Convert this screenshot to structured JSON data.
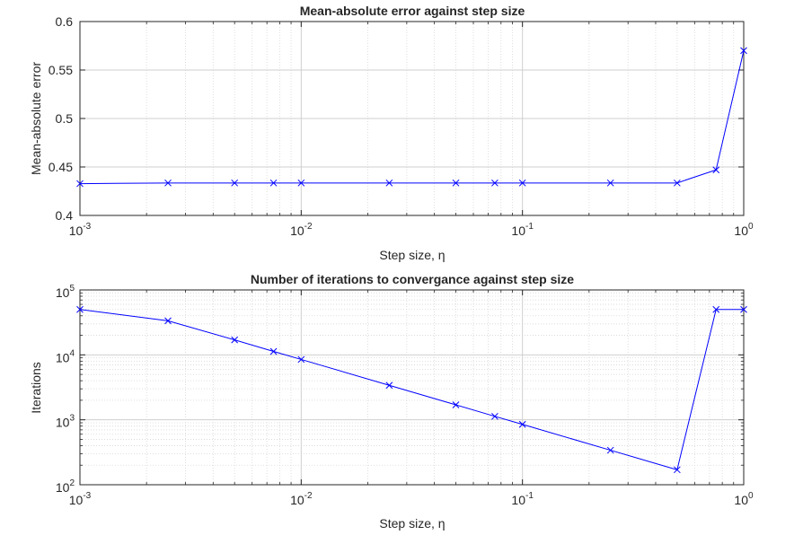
{
  "chart_data": [
    {
      "type": "line",
      "title": "Mean-absolute error against step size",
      "xlabel": "Step size, η",
      "ylabel": "Mean-absolute error",
      "xscale": "log",
      "yscale": "linear",
      "xlim": [
        0.001,
        1
      ],
      "ylim": [
        0.4,
        0.6
      ],
      "grid": true,
      "x_ticks": [
        0.001,
        0.01,
        0.1,
        1
      ],
      "x_tick_labels": [
        {
          "base": "10",
          "exp": "-3"
        },
        {
          "base": "10",
          "exp": "-2"
        },
        {
          "base": "10",
          "exp": "-1"
        },
        {
          "base": "10",
          "exp": "0"
        }
      ],
      "y_ticks": [
        0.4,
        0.45,
        0.5,
        0.55,
        0.6
      ],
      "y_tick_labels": [
        "0.4",
        "0.45",
        "0.5",
        "0.55",
        "0.6"
      ],
      "series": [
        {
          "color": "#0000ff",
          "marker": "x",
          "x": [
            0.001,
            0.0025,
            0.005,
            0.0075,
            0.01,
            0.025,
            0.05,
            0.075,
            0.1,
            0.25,
            0.5,
            0.75,
            1
          ],
          "y": [
            0.4328,
            0.4335,
            0.4335,
            0.4335,
            0.4335,
            0.4335,
            0.4335,
            0.4335,
            0.4335,
            0.4335,
            0.4335,
            0.447,
            0.57
          ]
        }
      ]
    },
    {
      "type": "line",
      "title": "Number of iterations to convergance against step size",
      "xlabel": "Step size, η",
      "ylabel": "Iterations",
      "xscale": "log",
      "yscale": "log",
      "xlim": [
        0.001,
        1
      ],
      "ylim": [
        100,
        100000
      ],
      "grid": true,
      "x_ticks": [
        0.001,
        0.01,
        0.1,
        1
      ],
      "x_tick_labels": [
        {
          "base": "10",
          "exp": "-3"
        },
        {
          "base": "10",
          "exp": "-2"
        },
        {
          "base": "10",
          "exp": "-1"
        },
        {
          "base": "10",
          "exp": "0"
        }
      ],
      "y_ticks": [
        100,
        1000,
        10000,
        100000
      ],
      "y_tick_labels": [
        {
          "base": "10",
          "exp": "2"
        },
        {
          "base": "10",
          "exp": "3"
        },
        {
          "base": "10",
          "exp": "4"
        },
        {
          "base": "10",
          "exp": "5"
        }
      ],
      "series": [
        {
          "color": "#0000ff",
          "marker": "x",
          "x": [
            0.001,
            0.0025,
            0.005,
            0.0075,
            0.01,
            0.025,
            0.05,
            0.075,
            0.1,
            0.25,
            0.5,
            0.75,
            1
          ],
          "y": [
            50000,
            33500,
            17000,
            11300,
            8500,
            3400,
            1700,
            1130,
            850,
            340,
            170,
            50000,
            50000
          ]
        }
      ]
    }
  ]
}
